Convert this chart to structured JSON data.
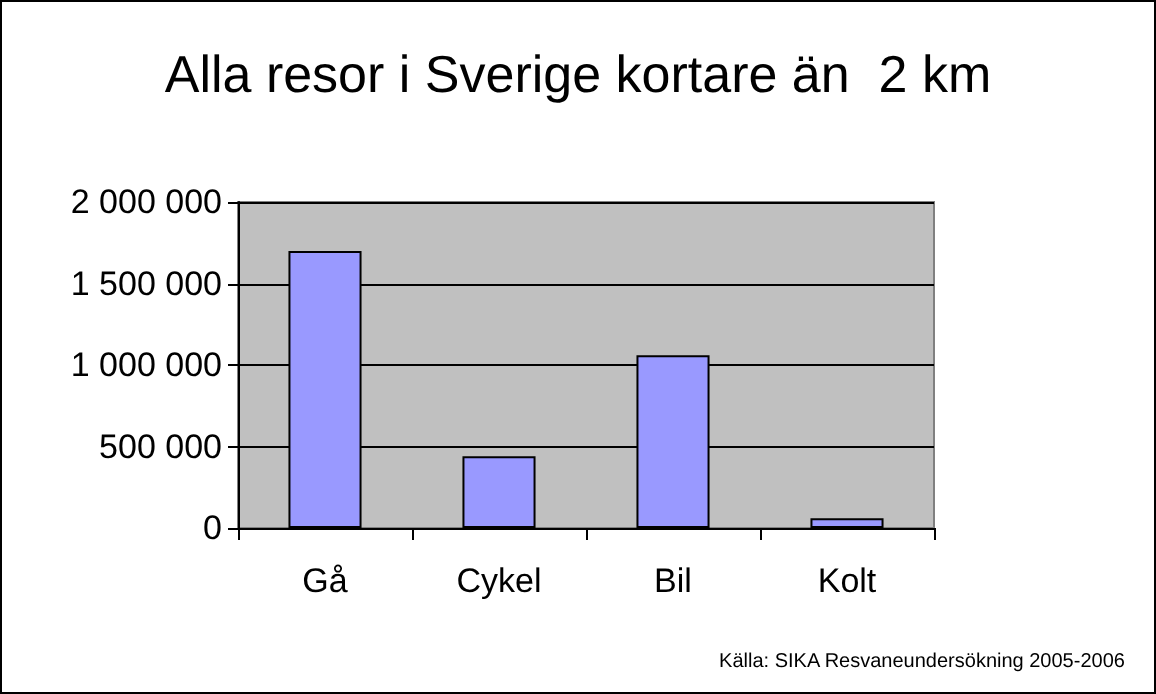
{
  "chart_data": {
    "type": "bar",
    "title": "Alla resor i Sverige kortare än  2 km",
    "categories": [
      "Gå",
      "Cykel",
      "Bil",
      "Kolt"
    ],
    "values": [
      1700000,
      440000,
      1060000,
      60000
    ],
    "color": "#9999ff",
    "ylim": [
      0,
      2000000
    ],
    "yticks": [
      0,
      {
        "value": 500000,
        "label": "500 000"
      },
      {
        "value": 1000000,
        "label": "1 000 000"
      },
      {
        "value": 1500000,
        "label": "1 500 000"
      },
      {
        "value": 2000000,
        "label": "2 000 000"
      }
    ],
    "grid": "y",
    "annotations": [
      "Källa: SIKA Resvaneundersökning 2005-2006"
    ]
  }
}
